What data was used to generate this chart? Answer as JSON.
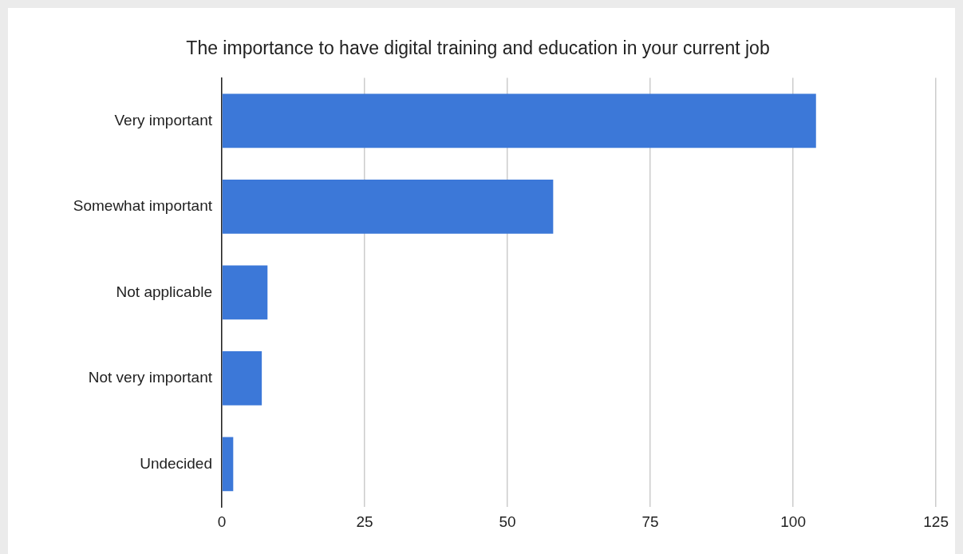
{
  "chart_data": {
    "type": "bar",
    "orientation": "horizontal",
    "title": "The importance to have digital training and education in your current job",
    "categories": [
      "Very important",
      "Somewhat important",
      "Not applicable",
      "Not very important",
      "Undecided"
    ],
    "values": [
      104,
      58,
      8,
      7,
      2
    ],
    "color": "#3c78d8",
    "xlim": [
      0,
      125
    ],
    "xticks": [
      0,
      25,
      50,
      75,
      100,
      125
    ],
    "grid": "x",
    "legend": false
  }
}
